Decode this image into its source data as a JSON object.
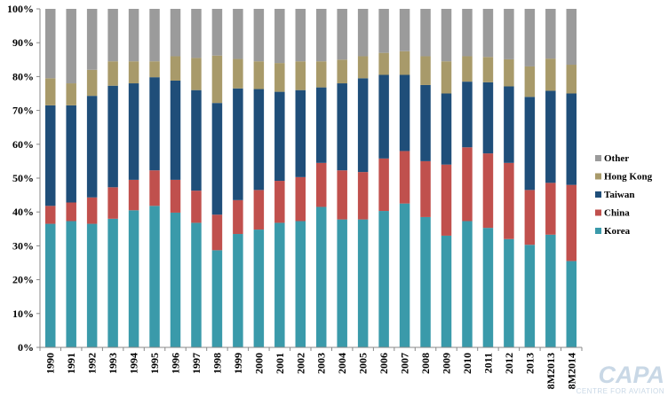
{
  "chart_data": {
    "type": "bar",
    "stacked": true,
    "title": "",
    "xlabel": "",
    "ylabel": "",
    "ylim": [
      0,
      100
    ],
    "y_ticks": [
      "0%",
      "10%",
      "20%",
      "30%",
      "40%",
      "50%",
      "60%",
      "70%",
      "80%",
      "90%",
      "100%"
    ],
    "grid": false,
    "legend_position": "right",
    "categories": [
      "1990",
      "1991",
      "1992",
      "1993",
      "1994",
      "1995",
      "1996",
      "1997",
      "1998",
      "1999",
      "2000",
      "2001",
      "2002",
      "2003",
      "2004",
      "2005",
      "2006",
      "2007",
      "2008",
      "2009",
      "2010",
      "2011",
      "2012",
      "2013",
      "8M2013",
      "8M2014"
    ],
    "series": [
      {
        "name": "Korea",
        "color": "#3a9aaa",
        "values": [
          36.5,
          37.3,
          36.5,
          38.0,
          40.5,
          41.8,
          39.8,
          36.8,
          28.7,
          33.5,
          34.8,
          36.8,
          37.3,
          41.5,
          37.8,
          37.8,
          40.3,
          42.5,
          38.5,
          33.0,
          37.3,
          35.3,
          32.0,
          30.3,
          33.3,
          25.5
        ]
      },
      {
        "name": "China",
        "color": "#c0504d",
        "values": [
          5.3,
          5.5,
          7.8,
          9.3,
          9.0,
          10.5,
          9.7,
          9.5,
          10.5,
          10.0,
          11.7,
          12.4,
          13.0,
          13.0,
          14.5,
          14.0,
          15.5,
          15.5,
          16.5,
          21.0,
          21.8,
          22.0,
          22.5,
          16.2,
          15.3,
          22.5
        ]
      },
      {
        "name": "Taiwan",
        "color": "#1f4e79",
        "values": [
          29.7,
          28.7,
          30.0,
          30.0,
          28.5,
          27.5,
          29.3,
          29.7,
          33.0,
          33.0,
          29.8,
          26.3,
          25.7,
          22.3,
          25.7,
          27.7,
          24.7,
          22.5,
          22.5,
          21.0,
          19.4,
          21.0,
          22.6,
          27.5,
          27.2,
          27.0
        ]
      },
      {
        "name": "Hong Kong",
        "color": "#a89a6a",
        "values": [
          8.0,
          6.5,
          7.7,
          7.2,
          6.5,
          4.7,
          7.2,
          9.5,
          14.0,
          8.7,
          8.2,
          8.5,
          8.5,
          7.7,
          7.0,
          6.5,
          6.5,
          7.0,
          8.5,
          9.5,
          7.5,
          7.5,
          8.0,
          9.0,
          9.5,
          8.5
        ]
      },
      {
        "name": "Other",
        "color": "#9b9b9b",
        "values": [
          20.5,
          22.0,
          18.0,
          15.5,
          15.5,
          15.5,
          14.0,
          14.5,
          13.8,
          14.8,
          15.5,
          16.0,
          15.5,
          15.5,
          15.0,
          14.0,
          13.0,
          12.5,
          14.0,
          15.5,
          14.0,
          14.2,
          14.9,
          17.0,
          14.7,
          16.5
        ]
      }
    ]
  },
  "branding": {
    "logo_text": "CAPA",
    "logo_subtext": "CENTRE FOR AVIATION"
  }
}
